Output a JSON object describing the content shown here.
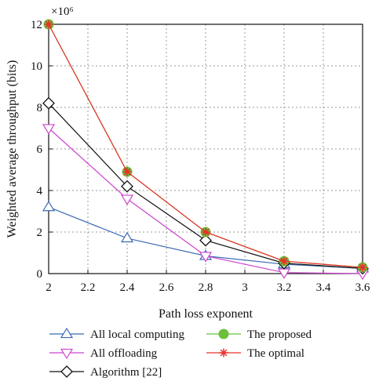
{
  "chart_data": {
    "type": "line",
    "xlabel": "Path loss exponent",
    "ylabel": "Weighted average throughput (bits)",
    "y_multiplier_label": "×10⁶",
    "xlim": [
      2,
      3.6
    ],
    "ylim": [
      0,
      12
    ],
    "grid": true,
    "legend_position": "bottom",
    "x_ticks": [
      "2",
      "2.2",
      "2.4",
      "2.6",
      "2.8",
      "3",
      "3.2",
      "3.4",
      "3.6"
    ],
    "y_ticks": [
      "0",
      "2",
      "4",
      "6",
      "8",
      "10",
      "12"
    ],
    "x": [
      2,
      2.4,
      2.8,
      3.2,
      3.6
    ],
    "series": [
      {
        "name": "All local computing",
        "values": [
          3.2,
          1.7,
          0.85,
          0.45,
          0.25
        ],
        "color": "#3b6bb5",
        "marker": "triangle-up"
      },
      {
        "name": "All offloading",
        "values": [
          7.0,
          3.6,
          0.85,
          0.05,
          0.0
        ],
        "color": "#cc44cc",
        "marker": "triangle-down"
      },
      {
        "name": "Algorithm [22]",
        "values": [
          8.2,
          4.2,
          1.6,
          0.5,
          0.25
        ],
        "color": "#111111",
        "marker": "diamond"
      },
      {
        "name": "The proposed",
        "values": [
          12.0,
          4.9,
          2.0,
          0.6,
          0.3
        ],
        "color": "#6bbf3c",
        "marker": "circle"
      },
      {
        "name": "The optimal",
        "values": [
          12.0,
          4.9,
          2.0,
          0.6,
          0.3
        ],
        "color": "#e8302a",
        "marker": "star"
      }
    ]
  }
}
